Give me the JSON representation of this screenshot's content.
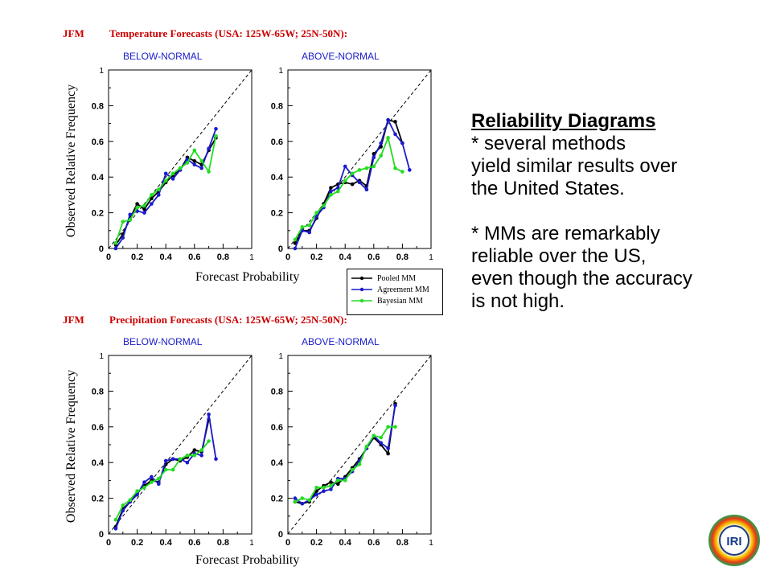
{
  "sections": [
    {
      "season": "JFM",
      "title": "Temperature Forecasts (USA: 125W-65W; 25N-50N):"
    },
    {
      "season": "JFM",
      "title": "Precipitation Forecasts (USA: 125W-65W; 25N-50N):"
    }
  ],
  "axis_labels": {
    "y": "Observed Relative Frequency",
    "x": "Forecast Probability"
  },
  "legend": {
    "items": [
      {
        "name": "Pooled MM",
        "color": "#000000"
      },
      {
        "name": "Agreement MM",
        "color": "#1a1acc"
      },
      {
        "name": "Bayesian MM",
        "color": "#22dd22"
      }
    ]
  },
  "notes": {
    "title": "Reliability Diagrams",
    "paragraphs": [
      [
        "* several methods",
        "yield similar results over",
        "the United States."
      ],
      [
        "* MMs are remarkably",
        "reliable over the US,",
        "even though the accuracy",
        "is not high."
      ]
    ]
  },
  "chart_data": [
    {
      "type": "line",
      "title": "BELOW-NORMAL",
      "xlim": [
        0,
        1
      ],
      "ylim": [
        0,
        1
      ],
      "xticks": [
        "0",
        "0.2",
        "0.4",
        "0.6",
        "0.8",
        "1"
      ],
      "yticks": [
        "0",
        "0.2",
        "0.4",
        "0.6",
        "0.8",
        "1"
      ],
      "series": [
        {
          "name": "Pooled MM",
          "color": "#000000",
          "x": [
            0.05,
            0.1,
            0.15,
            0.2,
            0.25,
            0.3,
            0.35,
            0.4,
            0.45,
            0.5,
            0.55,
            0.6,
            0.65,
            0.7,
            0.75
          ],
          "y": [
            0.02,
            0.08,
            0.17,
            0.25,
            0.22,
            0.28,
            0.32,
            0.37,
            0.41,
            0.44,
            0.51,
            0.49,
            0.47,
            0.55,
            0.62
          ]
        },
        {
          "name": "Agreement MM",
          "color": "#1a1acc",
          "x": [
            0.05,
            0.1,
            0.15,
            0.2,
            0.25,
            0.3,
            0.35,
            0.4,
            0.45,
            0.5,
            0.55,
            0.6,
            0.65,
            0.7,
            0.75
          ],
          "y": [
            0.0,
            0.06,
            0.19,
            0.21,
            0.2,
            0.25,
            0.3,
            0.42,
            0.39,
            0.44,
            0.5,
            0.47,
            0.45,
            0.56,
            0.67
          ]
        },
        {
          "name": "Bayesian MM",
          "color": "#22dd22",
          "x": [
            0.05,
            0.1,
            0.15,
            0.2,
            0.25,
            0.3,
            0.35,
            0.4,
            0.45,
            0.5,
            0.55,
            0.6,
            0.65,
            0.7,
            0.75
          ],
          "y": [
            0.03,
            0.15,
            0.16,
            0.23,
            0.24,
            0.3,
            0.33,
            0.38,
            0.42,
            0.45,
            0.48,
            0.55,
            0.49,
            0.43,
            0.63
          ]
        }
      ]
    },
    {
      "type": "line",
      "title": "ABOVE-NORMAL",
      "xlim": [
        0,
        1
      ],
      "ylim": [
        0,
        1
      ],
      "xticks": [
        "0",
        "0.2",
        "0.4",
        "0.6",
        "0.8",
        "1"
      ],
      "yticks": [
        "0",
        "0.2",
        "0.4",
        "0.6",
        "0.8",
        "1"
      ],
      "series": [
        {
          "name": "Pooled MM",
          "color": "#000000",
          "x": [
            0.05,
            0.1,
            0.15,
            0.2,
            0.25,
            0.3,
            0.35,
            0.4,
            0.45,
            0.5,
            0.55,
            0.6,
            0.65,
            0.7,
            0.75,
            0.8
          ],
          "y": [
            0.03,
            0.1,
            0.1,
            0.17,
            0.25,
            0.34,
            0.36,
            0.37,
            0.36,
            0.38,
            0.35,
            0.53,
            0.57,
            0.72,
            0.71,
            0.59
          ]
        },
        {
          "name": "Agreement MM",
          "color": "#1a1acc",
          "x": [
            0.05,
            0.1,
            0.15,
            0.2,
            0.25,
            0.3,
            0.35,
            0.4,
            0.45,
            0.5,
            0.55,
            0.6,
            0.65,
            0.7,
            0.75,
            0.8,
            0.85
          ],
          "y": [
            0.0,
            0.1,
            0.09,
            0.18,
            0.23,
            0.32,
            0.34,
            0.46,
            0.41,
            0.37,
            0.33,
            0.51,
            0.59,
            0.72,
            0.64,
            0.59,
            0.44
          ]
        },
        {
          "name": "Bayesian MM",
          "color": "#22dd22",
          "x": [
            0.05,
            0.1,
            0.15,
            0.2,
            0.25,
            0.3,
            0.35,
            0.4,
            0.45,
            0.5,
            0.55,
            0.6,
            0.65,
            0.7,
            0.75,
            0.8
          ],
          "y": [
            0.05,
            0.12,
            0.13,
            0.2,
            0.24,
            0.3,
            0.32,
            0.38,
            0.42,
            0.44,
            0.45,
            0.46,
            0.52,
            0.62,
            0.45,
            0.43
          ]
        }
      ]
    },
    {
      "type": "line",
      "title": "BELOW-NORMAL",
      "xlim": [
        0,
        1
      ],
      "ylim": [
        0,
        1
      ],
      "xticks": [
        "0",
        "0.2",
        "0.4",
        "0.6",
        "0.8",
        "1"
      ],
      "yticks": [
        "0",
        "0.2",
        "0.4",
        "0.6",
        "0.8",
        "1"
      ],
      "series": [
        {
          "name": "Pooled MM",
          "color": "#000000",
          "x": [
            0.05,
            0.1,
            0.15,
            0.2,
            0.25,
            0.3,
            0.35,
            0.4,
            0.45,
            0.5,
            0.55,
            0.6,
            0.65,
            0.7
          ],
          "y": [
            0.04,
            0.14,
            0.18,
            0.23,
            0.27,
            0.3,
            0.29,
            0.39,
            0.42,
            0.41,
            0.43,
            0.47,
            0.46,
            0.64
          ]
        },
        {
          "name": "Agreement MM",
          "color": "#1a1acc",
          "x": [
            0.05,
            0.1,
            0.15,
            0.2,
            0.25,
            0.3,
            0.35,
            0.4,
            0.45,
            0.5,
            0.55,
            0.6,
            0.65,
            0.7,
            0.75
          ],
          "y": [
            0.03,
            0.13,
            0.18,
            0.22,
            0.29,
            0.32,
            0.28,
            0.41,
            0.42,
            0.42,
            0.4,
            0.45,
            0.44,
            0.67,
            0.42
          ]
        },
        {
          "name": "Bayesian MM",
          "color": "#22dd22",
          "x": [
            0.05,
            0.1,
            0.15,
            0.2,
            0.25,
            0.3,
            0.35,
            0.4,
            0.45,
            0.5,
            0.55,
            0.6,
            0.65,
            0.7
          ],
          "y": [
            0.08,
            0.16,
            0.19,
            0.24,
            0.26,
            0.29,
            0.31,
            0.36,
            0.36,
            0.42,
            0.44,
            0.44,
            0.47,
            0.52
          ]
        }
      ]
    },
    {
      "type": "line",
      "title": "ABOVE-NORMAL",
      "xlim": [
        0,
        1
      ],
      "ylim": [
        0,
        1
      ],
      "xticks": [
        "0",
        "0.2",
        "0.4",
        "0.6",
        "0.8",
        "1"
      ],
      "yticks": [
        "0",
        "0.2",
        "0.4",
        "0.6",
        "0.8",
        "1"
      ],
      "series": [
        {
          "name": "Pooled MM",
          "color": "#000000",
          "x": [
            0.05,
            0.1,
            0.15,
            0.2,
            0.25,
            0.3,
            0.35,
            0.4,
            0.45,
            0.5,
            0.55,
            0.6,
            0.65,
            0.7,
            0.75
          ],
          "y": [
            0.18,
            0.17,
            0.18,
            0.24,
            0.27,
            0.29,
            0.28,
            0.32,
            0.37,
            0.42,
            0.48,
            0.54,
            0.5,
            0.45,
            0.73
          ]
        },
        {
          "name": "Agreement MM",
          "color": "#1a1acc",
          "x": [
            0.05,
            0.1,
            0.15,
            0.2,
            0.25,
            0.3,
            0.35,
            0.4,
            0.45,
            0.5,
            0.55,
            0.6,
            0.65,
            0.7,
            0.75
          ],
          "y": [
            0.2,
            0.17,
            0.19,
            0.22,
            0.24,
            0.25,
            0.31,
            0.31,
            0.35,
            0.41,
            0.48,
            0.55,
            0.51,
            0.48,
            0.72
          ]
        },
        {
          "name": "Bayesian MM",
          "color": "#22dd22",
          "x": [
            0.05,
            0.1,
            0.15,
            0.2,
            0.25,
            0.3,
            0.35,
            0.4,
            0.45,
            0.5,
            0.55,
            0.6,
            0.65,
            0.7,
            0.75
          ],
          "y": [
            0.18,
            0.2,
            0.19,
            0.26,
            0.26,
            0.27,
            0.3,
            0.3,
            0.36,
            0.39,
            0.49,
            0.55,
            0.54,
            0.6,
            0.6
          ]
        }
      ]
    }
  ]
}
